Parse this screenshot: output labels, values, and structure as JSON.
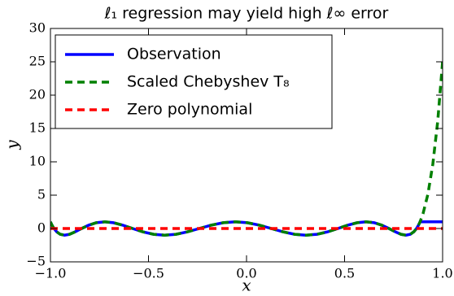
{
  "chart_data": {
    "type": "line",
    "title": "ℓ₁ regression may yield high ℓ∞ error",
    "xlabel": "x",
    "ylabel": "y",
    "x": [
      -1,
      -0.998,
      -0.992,
      -0.982,
      -0.968,
      -0.95,
      -0.928,
      -0.903,
      -0.874,
      -0.841,
      -0.805,
      -0.766,
      -0.724,
      -0.679,
      -0.631,
      -0.581,
      -0.529,
      -0.474,
      -0.418,
      -0.36,
      -0.301,
      -0.241,
      -0.181,
      -0.119,
      -0.057,
      0.004,
      0.066,
      0.126,
      0.186,
      0.245,
      0.303,
      0.359,
      0.414,
      0.466,
      0.516,
      0.564,
      0.609,
      0.651,
      0.69,
      0.726,
      0.759,
      0.788,
      0.813,
      0.835,
      0.853,
      0.867,
      0.877,
      0.883,
      0.885,
      0.9,
      0.925,
      0.95,
      0.975,
      1
    ],
    "series": [
      {
        "name": "Observation",
        "color": "#0000ff",
        "linestyle": "solid",
        "values": [
          1,
          0.87,
          0.5,
          0,
          -0.5,
          -0.87,
          -1,
          -0.87,
          -0.5,
          0,
          0.5,
          0.87,
          1,
          0.87,
          0.5,
          0,
          -0.5,
          -0.87,
          -1,
          -0.87,
          -0.5,
          0,
          0.5,
          0.87,
          1,
          0.87,
          0.5,
          0,
          -0.5,
          -0.87,
          -1,
          -0.87,
          -0.5,
          0,
          0.5,
          0.87,
          1,
          0.87,
          0.5,
          0,
          -0.5,
          -0.87,
          -1,
          -0.87,
          -0.5,
          0,
          0.5,
          0.87,
          1,
          1,
          1,
          1,
          1,
          1
        ]
      },
      {
        "name": "Scaled Chebyshev T₈",
        "color": "#008000",
        "linestyle": "dashed",
        "values": [
          1,
          0.87,
          0.5,
          0,
          -0.5,
          -0.87,
          -1,
          -0.87,
          -0.5,
          0,
          0.5,
          0.87,
          1,
          0.87,
          0.5,
          0,
          -0.5,
          -0.87,
          -1,
          -0.87,
          -0.5,
          0,
          0.5,
          0.87,
          1,
          0.87,
          0.5,
          0,
          -0.5,
          -0.87,
          -1,
          -0.87,
          -0.5,
          0,
          0.5,
          0.87,
          1,
          0.87,
          0.5,
          0,
          -0.5,
          -0.87,
          -1,
          -0.87,
          -0.5,
          0,
          0.5,
          0.87,
          1,
          2.2,
          5.15,
          9.62,
          16.07,
          25.04
        ]
      },
      {
        "name": "Zero polynomial",
        "color": "#ff0000",
        "linestyle": "dashed",
        "values": [
          0,
          0,
          0,
          0,
          0,
          0,
          0,
          0,
          0,
          0,
          0,
          0,
          0,
          0,
          0,
          0,
          0,
          0,
          0,
          0,
          0,
          0,
          0,
          0,
          0,
          0,
          0,
          0,
          0,
          0,
          0,
          0,
          0,
          0,
          0,
          0,
          0,
          0,
          0,
          0,
          0,
          0,
          0,
          0,
          0,
          0,
          0,
          0,
          0,
          0,
          0,
          0,
          0,
          0
        ]
      }
    ],
    "xlim": [
      -1,
      1
    ],
    "xticks": [
      {
        "value": -1,
        "label": "−1.0"
      },
      {
        "value": -0.5,
        "label": "−0.5"
      },
      {
        "value": 0,
        "label": "0.0"
      },
      {
        "value": 0.5,
        "label": "0.5"
      },
      {
        "value": 1,
        "label": "1.0"
      }
    ],
    "ylim": [
      -5,
      30
    ],
    "yticks": [
      {
        "value": -5,
        "label": "−5"
      },
      0,
      5,
      10,
      15,
      20,
      25,
      30
    ],
    "legend": "upper left",
    "grid": false
  }
}
